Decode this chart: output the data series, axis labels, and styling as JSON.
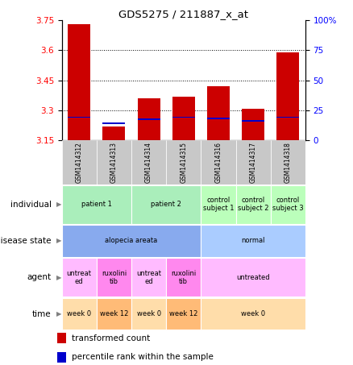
{
  "title": "GDS5275 / 211887_x_at",
  "samples": [
    "GSM1414312",
    "GSM1414313",
    "GSM1414314",
    "GSM1414315",
    "GSM1414316",
    "GSM1414317",
    "GSM1414318"
  ],
  "transformed_count": [
    3.73,
    3.22,
    3.36,
    3.37,
    3.42,
    3.31,
    3.59
  ],
  "percentile_rank": [
    20,
    15,
    18,
    20,
    19,
    17,
    20
  ],
  "bar_bottom": 3.15,
  "ylim_left": [
    3.15,
    3.75
  ],
  "ylim_right": [
    0,
    100
  ],
  "yticks_left": [
    3.15,
    3.3,
    3.45,
    3.6,
    3.75
  ],
  "yticks_right": [
    0,
    25,
    50,
    75,
    100
  ],
  "bar_color_red": "#cc0000",
  "bar_color_blue": "#0000cc",
  "sample_bg": "#c8c8c8",
  "individual_labels": [
    {
      "text": "patient 1",
      "cols": [
        0,
        1
      ],
      "color": "#aaeebb"
    },
    {
      "text": "patient 2",
      "cols": [
        2,
        3
      ],
      "color": "#aaeebb"
    },
    {
      "text": "control\nsubject 1",
      "cols": [
        4
      ],
      "color": "#bbffbb"
    },
    {
      "text": "control\nsubject 2",
      "cols": [
        5
      ],
      "color": "#bbffbb"
    },
    {
      "text": "control\nsubject 3",
      "cols": [
        6
      ],
      "color": "#bbffbb"
    }
  ],
  "disease_state_labels": [
    {
      "text": "alopecia areata",
      "cols": [
        0,
        1,
        2,
        3
      ],
      "color": "#88aaee"
    },
    {
      "text": "normal",
      "cols": [
        4,
        5,
        6
      ],
      "color": "#aaccff"
    }
  ],
  "agent_labels": [
    {
      "text": "untreat\ned",
      "cols": [
        0
      ],
      "color": "#ffbbff"
    },
    {
      "text": "ruxolini\ntib",
      "cols": [
        1
      ],
      "color": "#ff88ee"
    },
    {
      "text": "untreat\ned",
      "cols": [
        2
      ],
      "color": "#ffbbff"
    },
    {
      "text": "ruxolini\ntib",
      "cols": [
        3
      ],
      "color": "#ff88ee"
    },
    {
      "text": "untreated",
      "cols": [
        4,
        5,
        6
      ],
      "color": "#ffbbff"
    }
  ],
  "time_labels": [
    {
      "text": "week 0",
      "cols": [
        0
      ],
      "color": "#ffddaa"
    },
    {
      "text": "week 12",
      "cols": [
        1
      ],
      "color": "#ffbb77"
    },
    {
      "text": "week 0",
      "cols": [
        2
      ],
      "color": "#ffddaa"
    },
    {
      "text": "week 12",
      "cols": [
        3
      ],
      "color": "#ffbb77"
    },
    {
      "text": "week 0",
      "cols": [
        4,
        5,
        6
      ],
      "color": "#ffddaa"
    }
  ],
  "row_labels": [
    "individual",
    "disease state",
    "agent",
    "time"
  ],
  "legend_red": "transformed count",
  "legend_blue": "percentile rank within the sample"
}
